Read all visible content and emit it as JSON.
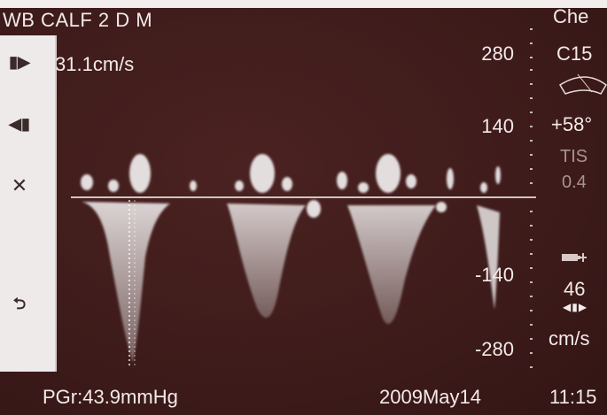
{
  "header": {
    "title": "WB CALF 2 D M",
    "velocity": "31.1cm/s"
  },
  "scale": {
    "labels": [
      "280",
      "140",
      "-140",
      "-280"
    ],
    "unit": "cm/s"
  },
  "right_panel": {
    "probe_top": "Che",
    "probe": "C15",
    "angle": "+58°",
    "tis_label": "TIS",
    "tis_value": "0.4",
    "gain": "46"
  },
  "footer": {
    "pgr": "PGr:43.9mmHg",
    "date": "2009May14",
    "time": "11:15"
  },
  "sidebar": {
    "icons": [
      "step-forward-icon",
      "step-back-icon",
      "close-icon",
      "return-icon"
    ]
  },
  "colors": {
    "background": "#3d1b1a",
    "signal": "#f4ecec",
    "sidebar": "#eeeaea"
  }
}
